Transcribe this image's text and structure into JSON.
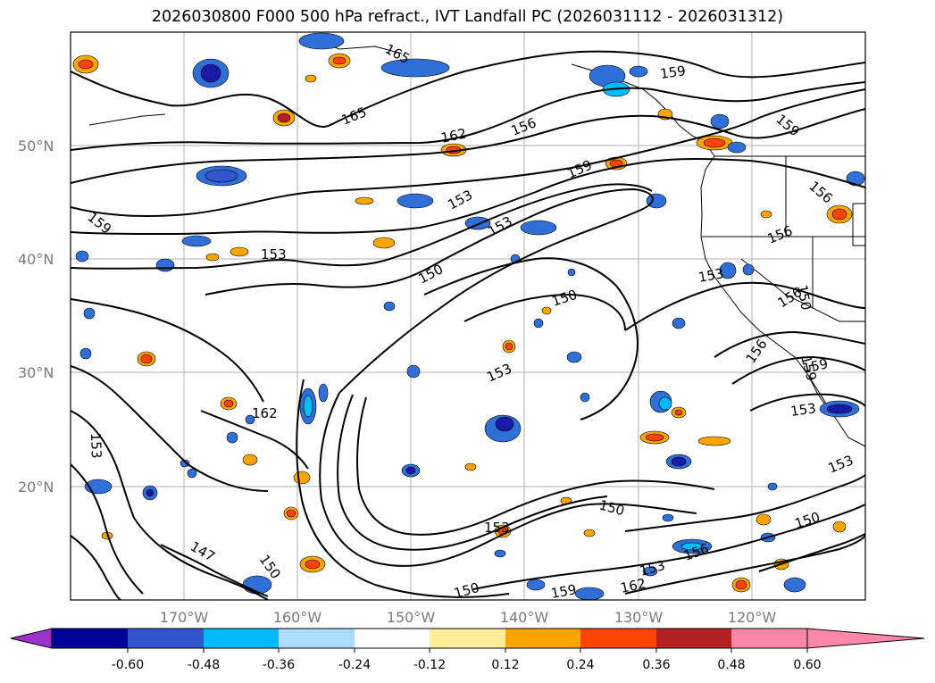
{
  "title": "2026030800 F000 500 hPa refract., IVT Landfall PC (2026031112 - 2026031312)",
  "lat_labels": [
    "50°N",
    "40°N",
    "30°N",
    "20°N"
  ],
  "lon_labels": [
    "170°W",
    "160°W",
    "150°W",
    "140°W",
    "130°W",
    "120°W"
  ],
  "contour_labels": [
    {
      "text": "165"
    },
    {
      "text": "165"
    },
    {
      "text": "162"
    },
    {
      "text": "156"
    },
    {
      "text": "159"
    },
    {
      "text": "159"
    },
    {
      "text": "159"
    },
    {
      "text": "159"
    },
    {
      "text": "153"
    },
    {
      "text": "153"
    },
    {
      "text": "153"
    },
    {
      "text": "150"
    },
    {
      "text": "150"
    },
    {
      "text": "156"
    },
    {
      "text": "156"
    },
    {
      "text": "153"
    },
    {
      "text": "156"
    },
    {
      "text": "156"
    },
    {
      "text": "159"
    },
    {
      "text": "153"
    },
    {
      "text": "162"
    },
    {
      "text": "153"
    },
    {
      "text": "153"
    },
    {
      "text": "150"
    },
    {
      "text": "153"
    },
    {
      "text": "147"
    },
    {
      "text": "150"
    },
    {
      "text": "150"
    },
    {
      "text": "153"
    },
    {
      "text": "156"
    },
    {
      "text": "159"
    },
    {
      "text": "162"
    },
    {
      "text": "150"
    },
    {
      "text": "153"
    },
    {
      "text": "150"
    },
    {
      "text": "159"
    }
  ],
  "colorbar": {
    "ticks": [
      "-0.60",
      "-0.48",
      "-0.36",
      "-0.24",
      "-0.12",
      "0.12",
      "0.24",
      "0.36",
      "0.48",
      "0.60"
    ],
    "colors": [
      "#9933cc",
      "#000099",
      "#3355cc",
      "#00bbff",
      "#aaddff",
      "#ffffff",
      "#ffee99",
      "#ffa500",
      "#ff4400",
      "#b22222",
      "#ff88aa"
    ]
  },
  "shading_colors": {
    "deep_blue": "#1a1aa8",
    "blue": "#2f6fd6",
    "cyan": "#00bbff",
    "light_blue": "#aaddff",
    "yellow": "#ffee99",
    "orange": "#ffa500",
    "red_orange": "#ff4400",
    "dark_red": "#b22222"
  }
}
